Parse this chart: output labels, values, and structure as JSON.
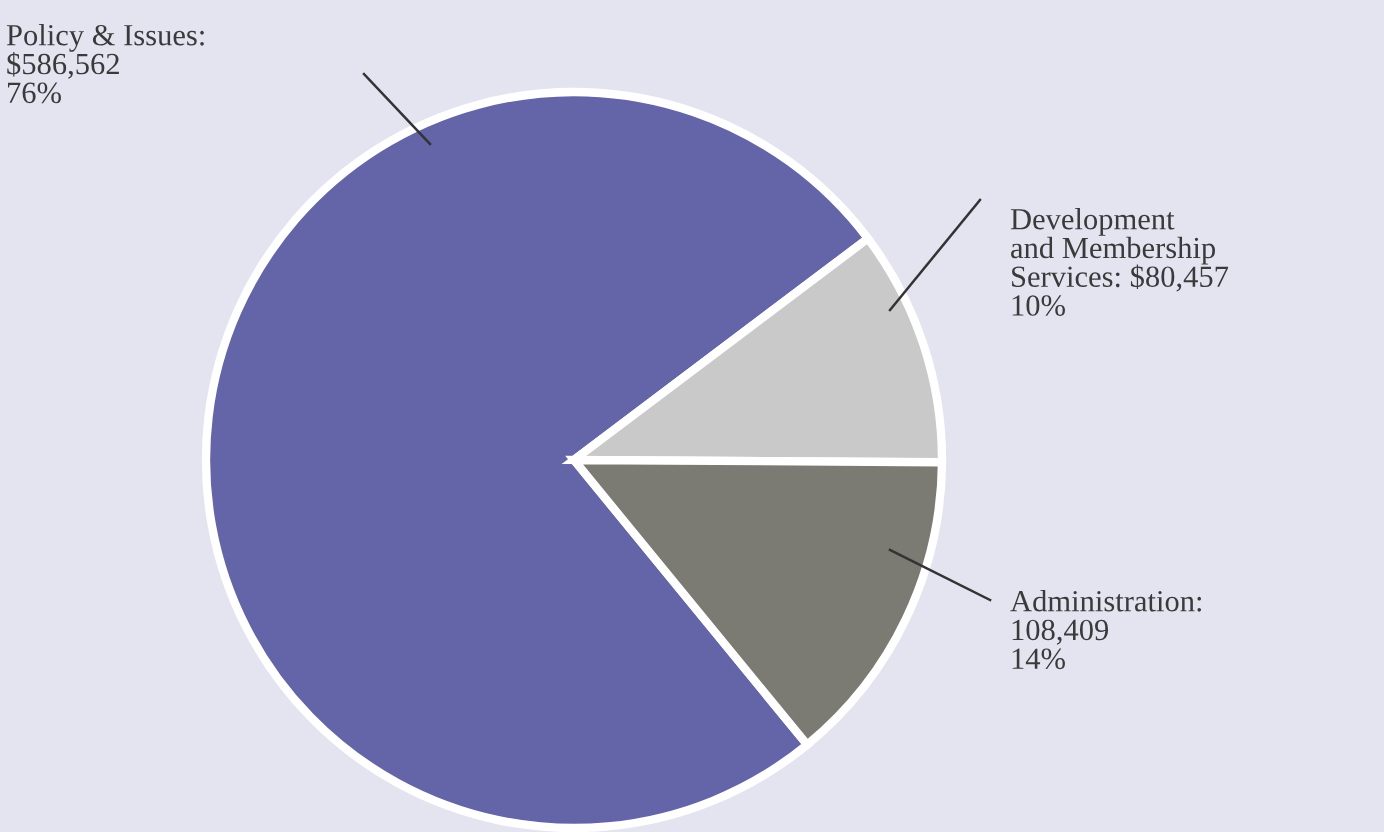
{
  "chart_data": {
    "type": "pie",
    "categories": [
      "Policy & Issues",
      "Development\nand Membership\nServices",
      "Administration"
    ],
    "values": [
      586562,
      80457,
      108409
    ],
    "value_labels": [
      ":\n$586,562\n76%",
      ": $80,457\n10%",
      ":\n108,409\n14%"
    ],
    "colors": [
      "#6464a8",
      "#c9c9c9",
      "#7b7b74"
    ]
  }
}
